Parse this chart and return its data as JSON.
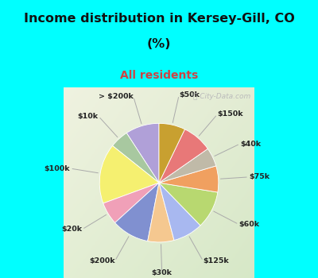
{
  "title_line1": "Income distribution in Kersey-Gill, CO",
  "title_line2": "(%)",
  "subtitle": "All residents",
  "title_color": "#111111",
  "subtitle_color": "#cc4444",
  "bg_cyan": "#00FFFF",
  "watermark": "City-Data.com",
  "labels": [
    "> $200k",
    "$10k",
    "$100k",
    "$20k",
    "$200k",
    "$30k",
    "$125k",
    "$60k",
    "$75k",
    "$40k",
    "$150k",
    "$50k"
  ],
  "values": [
    9,
    5,
    16,
    6,
    10,
    7,
    8,
    10,
    7,
    5,
    8,
    7
  ],
  "colors": [
    "#b0a0d8",
    "#a8c8a0",
    "#f5f070",
    "#f0a0b8",
    "#8090d0",
    "#f5c890",
    "#a8b8f0",
    "#b8d870",
    "#f0a060",
    "#c0baa8",
    "#e87878",
    "#c8a030"
  ],
  "startangle": 90
}
